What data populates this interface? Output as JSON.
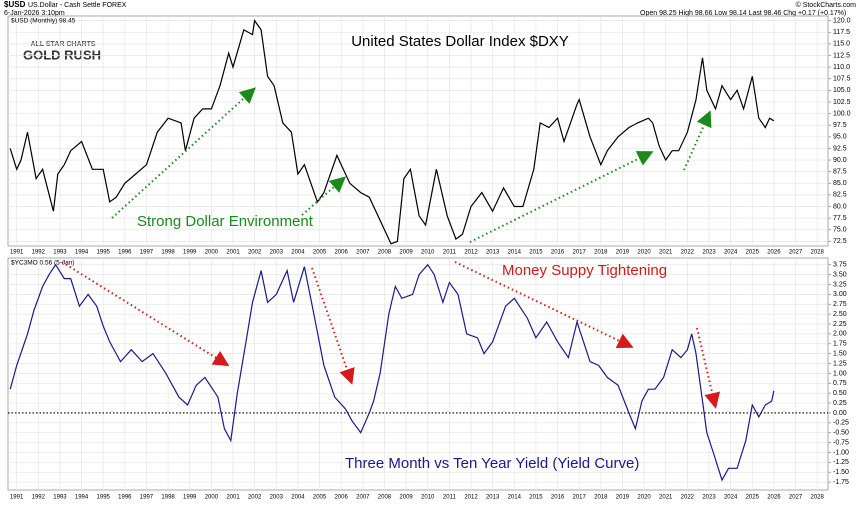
{
  "header": {
    "symbol": "$USD",
    "name": "US.Dollar - Cash Settle FOREX",
    "date": "6-Jan-2026 3:10pm",
    "quote": "Open 98.25  High 98.66  Low 98.14  Last 98.46  Chg +0.17 (+0.17%)",
    "credit": "© StockCharts.com"
  },
  "logo": {
    "line1": "ALL STAR CHARTS",
    "line2": "GOLD RUSH"
  },
  "chart_data": [
    {
      "type": "line",
      "title": "United States Dollar Index $DXY",
      "annotations": [
        "Strong Dollar Environment"
      ],
      "grid": true,
      "xlim": [
        1990.6,
        2028.5
      ],
      "xticks": [
        1991,
        1992,
        1993,
        1994,
        1995,
        1996,
        1997,
        1998,
        1999,
        2000,
        2001,
        2002,
        2003,
        2004,
        2005,
        2006,
        2007,
        2008,
        2009,
        2010,
        2011,
        2012,
        2013,
        2014,
        2015,
        2016,
        2017,
        2018,
        2019,
        2020,
        2021,
        2022,
        2023,
        2024,
        2025,
        2026,
        2027,
        2028
      ],
      "ylim": [
        71.5,
        121
      ],
      "yticks": [
        72.5,
        {
          "value": 75,
          "label": "75.0"
        },
        77.5,
        {
          "value": 80,
          "label": "80.0"
        },
        82.5,
        {
          "value": 85,
          "label": "85.0"
        },
        87.5,
        {
          "value": 90,
          "label": "90.0"
        },
        92.5,
        {
          "value": 95,
          "label": "95.0"
        },
        97.5,
        {
          "value": 100,
          "label": "100.0"
        },
        102.5,
        {
          "value": 105,
          "label": "105.0"
        },
        107.5,
        {
          "value": 110,
          "label": "110.0"
        },
        112.5,
        {
          "value": 115,
          "label": "115.0"
        },
        117.5,
        {
          "value": 120,
          "label": "120.0"
        }
      ],
      "series": [
        {
          "name": "$USD (Monthly) 98.45",
          "color": "#000000",
          "x": [
            1990.7,
            1991.0,
            1991.2,
            1991.5,
            1991.9,
            1992.2,
            1992.7,
            1992.9,
            1993.2,
            1993.5,
            1994.0,
            1994.5,
            1995.0,
            1995.3,
            1995.6,
            1996.0,
            1996.5,
            1997.0,
            1997.5,
            1998.0,
            1998.6,
            1998.8,
            1999.2,
            1999.6,
            2000.0,
            2000.4,
            2000.8,
            2001.0,
            2001.5,
            2001.9,
            2002.0,
            2002.3,
            2002.6,
            2002.9,
            2003.3,
            2003.7,
            2004.0,
            2004.3,
            2004.9,
            2005.2,
            2005.8,
            2006.0,
            2006.4,
            2006.9,
            2007.3,
            2007.9,
            2008.3,
            2008.6,
            2008.9,
            2009.2,
            2009.6,
            2009.9,
            2010.4,
            2010.9,
            2011.3,
            2011.6,
            2012.0,
            2012.5,
            2013.0,
            2013.5,
            2014.0,
            2014.4,
            2014.9,
            2015.2,
            2015.6,
            2016.0,
            2016.3,
            2016.9,
            2017.0,
            2017.5,
            2018.0,
            2018.3,
            2018.8,
            2019.3,
            2019.7,
            2020.2,
            2020.4,
            2020.7,
            2021.0,
            2021.3,
            2021.6,
            2022.0,
            2022.4,
            2022.7,
            2022.9,
            2023.3,
            2023.6,
            2024.0,
            2024.3,
            2024.6,
            2025.0,
            2025.3,
            2025.6,
            2025.8,
            2026.0
          ],
          "values": [
            92.5,
            88,
            90,
            96,
            86,
            88,
            79,
            87,
            89,
            92,
            94,
            88,
            88,
            81,
            82,
            85,
            87,
            89,
            96,
            99,
            98,
            92,
            99,
            101,
            101,
            106,
            113,
            110,
            118,
            117,
            120,
            118,
            108,
            106,
            98,
            96,
            87,
            89,
            81,
            83,
            91,
            89,
            85,
            83,
            82,
            76,
            72,
            72.5,
            86,
            88,
            78,
            76,
            88,
            78,
            73,
            74,
            80,
            83,
            79,
            84,
            80,
            80,
            88,
            98,
            97,
            99,
            94,
            102,
            103,
            95,
            89,
            92,
            95,
            97,
            98,
            99,
            98,
            93,
            90,
            92,
            92,
            96,
            103,
            112,
            105,
            101,
            106,
            103,
            105,
            101,
            108,
            99,
            97,
            99,
            98.45
          ]
        }
      ]
    },
    {
      "type": "line",
      "annotations": [
        "Money Suppy Tightening",
        "Three Month vs Ten Year Yield (Yield Curve)"
      ],
      "grid": true,
      "xlim": [
        1990.6,
        2028.5
      ],
      "xticks": [
        1991,
        1992,
        1993,
        1994,
        1995,
        1996,
        1997,
        1998,
        1999,
        2000,
        2001,
        2002,
        2003,
        2004,
        2005,
        2006,
        2007,
        2008,
        2009,
        2010,
        2011,
        2012,
        2013,
        2014,
        2015,
        2016,
        2017,
        2018,
        2019,
        2020,
        2021,
        2022,
        2023,
        2024,
        2025,
        2026,
        2027,
        2028
      ],
      "ylim": [
        -1.95,
        3.92
      ],
      "yticks": [
        -1.75,
        {
          "value": -1.5,
          "label": "-1.50"
        },
        -1.25,
        {
          "value": -1,
          "label": "-1.00"
        },
        -0.75,
        {
          "value": -0.5,
          "label": "-0.50"
        },
        -0.25,
        {
          "value": 0,
          "label": "0.00"
        },
        0.25,
        {
          "value": 0.5,
          "label": "0.50"
        },
        0.75,
        {
          "value": 1,
          "label": "1.00"
        },
        1.25,
        {
          "value": 1.5,
          "label": "1.50"
        },
        1.75,
        {
          "value": 2,
          "label": "2.00"
        },
        2.25,
        {
          "value": 2.5,
          "label": "2.50"
        },
        2.75,
        {
          "value": 3,
          "label": "3.00"
        },
        3.25,
        {
          "value": 3.5,
          "label": "3.50"
        },
        3.75
      ],
      "series": [
        {
          "name": "$YC3MO 0.56 (5-Jan)",
          "color": "#1a1a8c",
          "x": [
            1990.7,
            1991.0,
            1991.5,
            1991.8,
            1992.2,
            1992.5,
            1992.8,
            1993.2,
            1993.5,
            1993.9,
            1994.3,
            1994.7,
            1995.0,
            1995.3,
            1995.8,
            1996.3,
            1996.8,
            1997.3,
            1997.9,
            1998.5,
            1998.9,
            1999.3,
            1999.7,
            2000.3,
            2000.6,
            2000.9,
            2001.2,
            2001.6,
            2001.9,
            2002.3,
            2002.6,
            2003.0,
            2003.5,
            2003.8,
            2004.3,
            2004.7,
            2005.2,
            2005.7,
            2006.2,
            2006.5,
            2006.9,
            2007.3,
            2007.5,
            2007.8,
            2008.2,
            2008.5,
            2008.8,
            2009.3,
            2009.6,
            2010.0,
            2010.3,
            2010.7,
            2011.0,
            2011.4,
            2011.8,
            2012.3,
            2012.6,
            2013.0,
            2013.6,
            2014.0,
            2014.6,
            2015.0,
            2015.5,
            2016.0,
            2016.5,
            2016.9,
            2017.5,
            2017.9,
            2018.3,
            2018.8,
            2019.3,
            2019.6,
            2019.9,
            2020.2,
            2020.5,
            2020.9,
            2021.3,
            2021.7,
            2022.0,
            2022.2,
            2022.4,
            2022.7,
            2022.9,
            2023.2,
            2023.6,
            2023.9,
            2024.3,
            2024.7,
            2025.0,
            2025.3,
            2025.6,
            2025.9,
            2026.0
          ],
          "values": [
            0.6,
            1.2,
            2.0,
            2.6,
            3.2,
            3.5,
            3.75,
            3.4,
            3.4,
            2.7,
            3.0,
            2.7,
            2.2,
            1.8,
            1.3,
            1.6,
            1.3,
            1.5,
            1.0,
            0.4,
            0.2,
            0.7,
            0.9,
            0.4,
            -0.4,
            -0.7,
            0.5,
            1.8,
            2.8,
            3.6,
            2.8,
            3.0,
            3.6,
            2.8,
            3.7,
            2.6,
            1.2,
            0.4,
            0.1,
            -0.2,
            -0.5,
            0.0,
            0.3,
            1.0,
            2.5,
            3.2,
            2.9,
            3.0,
            3.5,
            3.75,
            3.5,
            2.8,
            3.3,
            3.0,
            2.0,
            1.9,
            1.5,
            1.8,
            2.7,
            2.9,
            2.4,
            1.9,
            2.3,
            1.8,
            1.4,
            2.3,
            1.3,
            1.2,
            0.9,
            0.7,
            0.0,
            -0.4,
            0.3,
            0.6,
            0.6,
            0.9,
            1.6,
            1.4,
            1.6,
            2.0,
            1.5,
            0.3,
            -0.5,
            -1.0,
            -1.7,
            -1.4,
            -1.4,
            -0.7,
            0.2,
            -0.1,
            0.2,
            0.3,
            0.56
          ]
        }
      ]
    }
  ]
}
